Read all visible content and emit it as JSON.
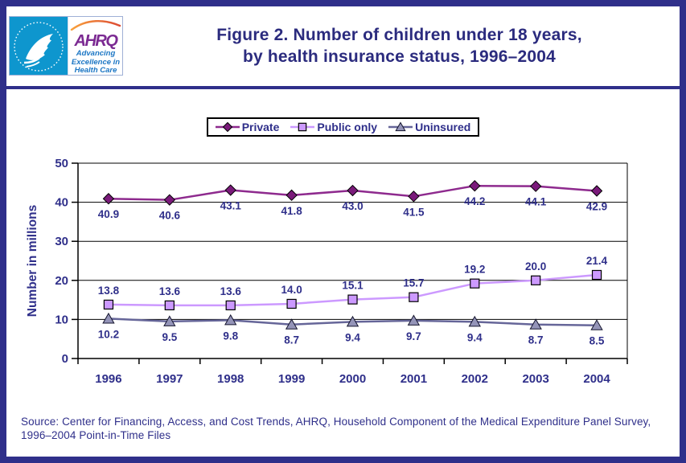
{
  "header": {
    "logo": {
      "ahrq_acronym": "AHRQ",
      "ahrq_tagline_lines": [
        "Advancing",
        "Excellence in",
        "Health Care"
      ]
    },
    "title_lines": [
      "Figure 2. Number of children under 18 years,",
      "by health insurance status, 1996–2004"
    ]
  },
  "chart_data": {
    "type": "line",
    "title": "",
    "xlabel": "",
    "ylabel": "Number in millions",
    "ylim": [
      0,
      50
    ],
    "yticks": [
      0,
      10,
      20,
      30,
      40,
      50
    ],
    "grid": true,
    "legend_position": "top",
    "categories": [
      "1996",
      "1997",
      "1998",
      "1999",
      "2000",
      "2001",
      "2002",
      "2003",
      "2004"
    ],
    "series": [
      {
        "name": "Private",
        "marker": "diamond",
        "color": "#8E2A8E",
        "marker_fill": "#7A1A7A",
        "label_position": "below",
        "values": [
          40.9,
          40.6,
          43.1,
          41.8,
          43.0,
          41.5,
          44.2,
          44.1,
          42.9
        ],
        "labels": [
          "40.9",
          "40.6",
          "43.1",
          "41.8",
          "43.0",
          "41.5",
          "44.2",
          "44.1",
          "42.9"
        ]
      },
      {
        "name": "Public only",
        "marker": "square",
        "color": "#CC99FF",
        "marker_fill": "#CC99FF",
        "label_position": "above",
        "values": [
          13.8,
          13.6,
          13.6,
          14.0,
          15.1,
          15.7,
          19.2,
          20.0,
          21.4
        ],
        "labels": [
          "13.8",
          "13.6",
          "13.6",
          "14.0",
          "15.1",
          "15.7",
          "19.2",
          "20.0",
          "21.4"
        ]
      },
      {
        "name": "Uninsured",
        "marker": "triangle",
        "color": "#666699",
        "marker_fill": "#9494B8",
        "label_position": "below",
        "values": [
          10.2,
          9.5,
          9.8,
          8.7,
          9.4,
          9.7,
          9.4,
          8.7,
          8.5
        ],
        "labels": [
          "10.2",
          "9.5",
          "9.8",
          "8.7",
          "9.4",
          "9.7",
          "9.4",
          "8.7",
          "8.5"
        ]
      }
    ]
  },
  "footer": {
    "source_lines": [
      "Source: Center for Financing, Access, and Cost Trends, AHRQ, Household Component of the Medical Expenditure Panel Survey,",
      "1996–2004 Point-in-Time Files"
    ]
  },
  "colors": {
    "frame_navy": "#2F2F8A",
    "text_navy": "#2F2F8A",
    "axis_black": "#000000",
    "private_line": "#8E2A8E",
    "private_marker_fill": "#7A1A7A",
    "public_line": "#CC99FF",
    "public_marker_fill": "#CC99FF",
    "uninsured_line": "#666699",
    "uninsured_marker_fill": "#9494B8",
    "hhs_seal_blue": "#0E96CE",
    "ahrq_purple": "#7B2A92",
    "ahrq_tagline_blue": "#1B76C4",
    "swoosh_orange_start": "#F9A13C",
    "swoosh_orange_end": "#DC4A33"
  }
}
